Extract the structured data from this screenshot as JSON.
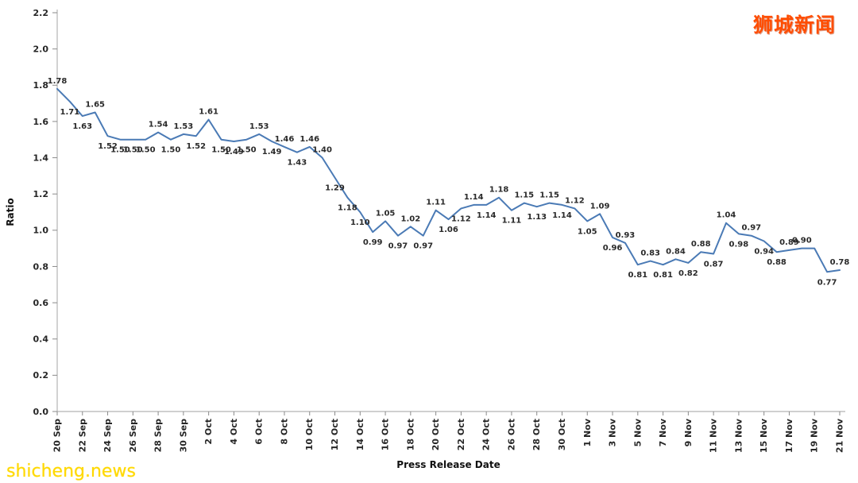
{
  "watermarks": {
    "top_right": "狮城新闻",
    "top_right_color": "#ff4d00",
    "bottom_left": "shicheng.news",
    "bottom_left_color": "#ffd900"
  },
  "chart_data": {
    "type": "line",
    "title": "",
    "xlabel": "Press Release Date",
    "ylabel": "Ratio",
    "ylim": [
      0.0,
      2.2
    ],
    "ytick_step": 0.2,
    "xtick_every": 2,
    "grid": false,
    "legend": "none",
    "line_color": "#4a7ab5",
    "x": [
      "20 Sep",
      "21 Sep",
      "22 Sep",
      "23 Sep",
      "24 Sep",
      "25 Sep",
      "26 Sep",
      "27 Sep",
      "28 Sep",
      "29 Sep",
      "30 Sep",
      "1 Oct",
      "2 Oct",
      "3 Oct",
      "4 Oct",
      "5 Oct",
      "6 Oct",
      "7 Oct",
      "8 Oct",
      "9 Oct",
      "10 Oct",
      "11 Oct",
      "12 Oct",
      "13 Oct",
      "14 Oct",
      "15 Oct",
      "16 Oct",
      "17 Oct",
      "18 Oct",
      "19 Oct",
      "20 Oct",
      "21 Oct",
      "22 Oct",
      "23 Oct",
      "24 Oct",
      "25 Oct",
      "26 Oct",
      "27 Oct",
      "28 Oct",
      "29 Oct",
      "30 Oct",
      "31 Oct",
      "1 Nov",
      "2 Nov",
      "3 Nov",
      "4 Nov",
      "5 Nov",
      "6 Nov",
      "7 Nov",
      "8 Nov",
      "9 Nov",
      "10 Nov",
      "11 Nov",
      "12 Nov",
      "13 Nov",
      "14 Nov",
      "15 Nov",
      "16 Nov",
      "17 Nov",
      "18 Nov",
      "19 Nov",
      "20 Nov",
      "21 Nov"
    ],
    "values": [
      1.78,
      1.71,
      1.63,
      1.65,
      1.52,
      1.5,
      1.5,
      1.5,
      1.54,
      1.5,
      1.53,
      1.52,
      1.61,
      1.5,
      1.49,
      1.5,
      1.53,
      1.49,
      1.46,
      1.43,
      1.46,
      1.4,
      1.29,
      1.18,
      1.1,
      0.99,
      1.05,
      0.97,
      1.02,
      0.97,
      1.11,
      1.06,
      1.12,
      1.14,
      1.14,
      1.18,
      1.11,
      1.15,
      1.13,
      1.15,
      1.14,
      1.12,
      1.05,
      1.09,
      0.96,
      0.93,
      0.81,
      0.83,
      0.81,
      0.84,
      0.82,
      0.88,
      0.87,
      1.04,
      0.98,
      0.97,
      0.94,
      0.88,
      0.89,
      0.9,
      0.9,
      0.77,
      0.78
    ],
    "label_positions": [
      "above",
      "below",
      "below",
      "above",
      "below",
      "below",
      "below",
      "below",
      "above",
      "below",
      "above",
      "below",
      "above",
      "below",
      "below",
      "below",
      "above",
      "below",
      "above",
      "below",
      "above",
      "above",
      "below",
      "below",
      "below",
      "below",
      "above",
      "below",
      "above",
      "below",
      "above",
      "below",
      "below",
      "above",
      "below",
      "above",
      "below",
      "above",
      "below",
      "above",
      "below",
      "above",
      "below",
      "above",
      "below",
      "above",
      "below",
      "above",
      "below",
      "above",
      "below",
      "above",
      "below",
      "above",
      "below",
      "above",
      "below",
      "below",
      "above",
      "above",
      "none",
      "below",
      "above"
    ]
  }
}
